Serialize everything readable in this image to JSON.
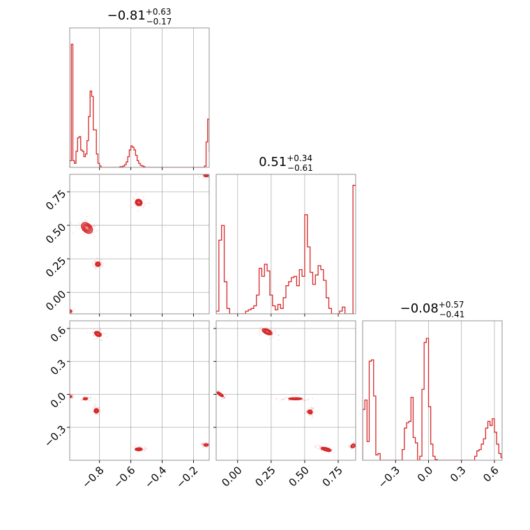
{
  "chart_data": {
    "type": "corner",
    "color": "#d62728",
    "parameters": [
      {
        "title": {
          "median": "−0.81",
          "plus": "+0.63",
          "minus": "−0.17"
        },
        "range": [
          -0.99,
          -0.1
        ],
        "ticks": [
          {
            "v": -0.8,
            "label": "−0.8"
          },
          {
            "v": -0.6,
            "label": "−0.6"
          },
          {
            "v": -0.4,
            "label": "−0.4"
          },
          {
            "v": -0.2,
            "label": "−0.2"
          }
        ],
        "histogram": [
          [
            -0.99,
            0.05
          ],
          [
            -0.98,
            0.92
          ],
          [
            -0.97,
            0.05
          ],
          [
            -0.96,
            0.03
          ],
          [
            -0.95,
            0.12
          ],
          [
            -0.94,
            0.22
          ],
          [
            -0.93,
            0.23
          ],
          [
            -0.92,
            0.13
          ],
          [
            -0.91,
            0.12
          ],
          [
            -0.9,
            0.08
          ],
          [
            -0.89,
            0.1
          ],
          [
            -0.88,
            0.2
          ],
          [
            -0.87,
            0.38
          ],
          [
            -0.86,
            0.57
          ],
          [
            -0.85,
            0.53
          ],
          [
            -0.84,
            0.28
          ],
          [
            -0.83,
            0.28
          ],
          [
            -0.82,
            0.1
          ],
          [
            -0.81,
            0.03
          ],
          [
            -0.8,
            0.01
          ],
          [
            -0.79,
            0.0
          ],
          [
            -0.78,
            0.0
          ],
          [
            -0.77,
            0.0
          ],
          [
            -0.76,
            0.0
          ],
          [
            -0.75,
            0.0
          ],
          [
            -0.74,
            0.0
          ],
          [
            -0.73,
            0.0
          ],
          [
            -0.72,
            0.0
          ],
          [
            -0.71,
            0.0
          ],
          [
            -0.7,
            0.0
          ],
          [
            -0.69,
            0.0
          ],
          [
            -0.68,
            0.0
          ],
          [
            -0.67,
            0.005
          ],
          [
            -0.66,
            0.005
          ],
          [
            -0.65,
            0.01
          ],
          [
            -0.64,
            0.02
          ],
          [
            -0.63,
            0.04
          ],
          [
            -0.62,
            0.08
          ],
          [
            -0.61,
            0.13
          ],
          [
            -0.6,
            0.16
          ],
          [
            -0.59,
            0.15
          ],
          [
            -0.58,
            0.13
          ],
          [
            -0.57,
            0.09
          ],
          [
            -0.56,
            0.05
          ],
          [
            -0.55,
            0.03
          ],
          [
            -0.54,
            0.015
          ],
          [
            -0.53,
            0.01
          ],
          [
            -0.52,
            0.005
          ],
          [
            -0.51,
            0.0
          ],
          [
            -0.5,
            0.0
          ],
          [
            -0.49,
            0.0
          ],
          [
            -0.48,
            0.0
          ],
          [
            -0.47,
            0.0
          ],
          [
            -0.46,
            0.0
          ],
          [
            -0.45,
            0.0
          ],
          [
            -0.44,
            0.0
          ],
          [
            -0.43,
            0.0
          ],
          [
            -0.42,
            0.0
          ],
          [
            -0.41,
            0.0
          ],
          [
            -0.4,
            0.0
          ],
          [
            -0.39,
            0.0
          ],
          [
            -0.38,
            0.0
          ],
          [
            -0.37,
            0.0
          ],
          [
            -0.36,
            0.0
          ],
          [
            -0.35,
            0.0
          ],
          [
            -0.34,
            0.0
          ],
          [
            -0.33,
            0.0
          ],
          [
            -0.32,
            0.0
          ],
          [
            -0.31,
            0.0
          ],
          [
            -0.3,
            0.0
          ],
          [
            -0.29,
            0.0
          ],
          [
            -0.28,
            0.0
          ],
          [
            -0.27,
            0.0
          ],
          [
            -0.26,
            0.0
          ],
          [
            -0.25,
            0.0
          ],
          [
            -0.24,
            0.0
          ],
          [
            -0.23,
            0.0
          ],
          [
            -0.22,
            0.0
          ],
          [
            -0.21,
            0.0
          ],
          [
            -0.2,
            0.0
          ],
          [
            -0.19,
            0.0
          ],
          [
            -0.18,
            0.0
          ],
          [
            -0.17,
            0.0
          ],
          [
            -0.16,
            0.0
          ],
          [
            -0.15,
            0.0
          ],
          [
            -0.14,
            0.0
          ],
          [
            -0.13,
            0.01
          ],
          [
            -0.12,
            0.19
          ],
          [
            -0.11,
            0.36
          ],
          [
            -0.1,
            0.12
          ]
        ]
      },
      {
        "title": {
          "median": "0.51",
          "plus": "+0.34",
          "minus": "−0.61"
        },
        "range": [
          -0.16,
          0.88
        ],
        "ticks": [
          {
            "v": 0.0,
            "label": "0.00"
          },
          {
            "v": 0.25,
            "label": "0.25"
          },
          {
            "v": 0.5,
            "label": "0.50"
          },
          {
            "v": 0.75,
            "label": "0.75"
          }
        ],
        "histogram": [
          [
            -0.16,
            0.02
          ],
          [
            -0.14,
            0.55
          ],
          [
            -0.12,
            0.66
          ],
          [
            -0.1,
            0.24
          ],
          [
            -0.08,
            0.04
          ],
          [
            -0.06,
            0.0
          ],
          [
            -0.04,
            0.0
          ],
          [
            -0.02,
            0.0
          ],
          [
            0.0,
            0.0
          ],
          [
            0.02,
            0.0
          ],
          [
            0.04,
            0.0
          ],
          [
            0.06,
            0.02
          ],
          [
            0.08,
            0.03
          ],
          [
            0.1,
            0.04
          ],
          [
            0.12,
            0.06
          ],
          [
            0.14,
            0.14
          ],
          [
            0.16,
            0.34
          ],
          [
            0.18,
            0.28
          ],
          [
            0.2,
            0.37
          ],
          [
            0.22,
            0.32
          ],
          [
            0.24,
            0.14
          ],
          [
            0.26,
            0.06
          ],
          [
            0.28,
            0.03
          ],
          [
            0.3,
            0.07
          ],
          [
            0.32,
            0.04
          ],
          [
            0.34,
            0.12
          ],
          [
            0.36,
            0.21
          ],
          [
            0.38,
            0.24
          ],
          [
            0.4,
            0.27
          ],
          [
            0.42,
            0.28
          ],
          [
            0.44,
            0.21
          ],
          [
            0.46,
            0.33
          ],
          [
            0.48,
            0.28
          ],
          [
            0.5,
            0.74
          ],
          [
            0.52,
            0.5
          ],
          [
            0.54,
            0.31
          ],
          [
            0.56,
            0.22
          ],
          [
            0.58,
            0.29
          ],
          [
            0.6,
            0.36
          ],
          [
            0.62,
            0.33
          ],
          [
            0.64,
            0.25
          ],
          [
            0.66,
            0.12
          ],
          [
            0.68,
            0.04
          ],
          [
            0.7,
            0.0
          ],
          [
            0.72,
            0.0
          ],
          [
            0.74,
            0.0
          ],
          [
            0.76,
            0.02
          ],
          [
            0.78,
            0.05
          ],
          [
            0.8,
            0.0
          ],
          [
            0.82,
            0.0
          ],
          [
            0.84,
            0.0
          ],
          [
            0.86,
            0.96
          ]
        ]
      },
      {
        "title": {
          "median": "−0.08",
          "plus": "+0.57",
          "minus": "−0.41"
        },
        "range": [
          -0.6,
          0.67
        ],
        "ticks": [
          {
            "v": -0.3,
            "label": "−0.3"
          },
          {
            "v": 0.0,
            "label": "0.0"
          },
          {
            "v": 0.3,
            "label": "0.3"
          },
          {
            "v": 0.6,
            "label": "0.6"
          }
        ],
        "histogram": [
          [
            -0.6,
            0.38
          ],
          [
            -0.58,
            0.45
          ],
          [
            -0.56,
            0.14
          ],
          [
            -0.54,
            0.74
          ],
          [
            -0.52,
            0.75
          ],
          [
            -0.5,
            0.48
          ],
          [
            -0.48,
            0.04
          ],
          [
            -0.46,
            0.05
          ],
          [
            -0.44,
            0.0
          ],
          [
            -0.42,
            0.0
          ],
          [
            -0.4,
            0.0
          ],
          [
            -0.38,
            0.0
          ],
          [
            -0.36,
            0.0
          ],
          [
            -0.34,
            0.0
          ],
          [
            -0.32,
            0.0
          ],
          [
            -0.3,
            0.0
          ],
          [
            -0.28,
            0.0
          ],
          [
            -0.26,
            0.0
          ],
          [
            -0.24,
            0.08
          ],
          [
            -0.22,
            0.24
          ],
          [
            -0.2,
            0.28
          ],
          [
            -0.18,
            0.29
          ],
          [
            -0.16,
            0.47
          ],
          [
            -0.14,
            0.17
          ],
          [
            -0.12,
            0.13
          ],
          [
            -0.1,
            0.0
          ],
          [
            -0.08,
            0.03
          ],
          [
            -0.06,
            0.53
          ],
          [
            -0.04,
            0.88
          ],
          [
            -0.02,
            0.91
          ],
          [
            0.0,
            0.4
          ],
          [
            0.02,
            0.12
          ],
          [
            0.04,
            0.03
          ],
          [
            0.06,
            0.005
          ],
          [
            0.08,
            0.0
          ],
          [
            0.1,
            0.0
          ],
          [
            0.12,
            0.0
          ],
          [
            0.14,
            0.0
          ],
          [
            0.16,
            0.0
          ],
          [
            0.18,
            0.0
          ],
          [
            0.2,
            0.0
          ],
          [
            0.22,
            0.0
          ],
          [
            0.24,
            0.0
          ],
          [
            0.26,
            0.0
          ],
          [
            0.28,
            0.0
          ],
          [
            0.3,
            0.0
          ],
          [
            0.32,
            0.0
          ],
          [
            0.34,
            0.0
          ],
          [
            0.36,
            0.0
          ],
          [
            0.38,
            0.0
          ],
          [
            0.4,
            0.0
          ],
          [
            0.42,
            0.03
          ],
          [
            0.44,
            0.07
          ],
          [
            0.46,
            0.08
          ],
          [
            0.48,
            0.12
          ],
          [
            0.5,
            0.16
          ],
          [
            0.52,
            0.24
          ],
          [
            0.54,
            0.29
          ],
          [
            0.56,
            0.26
          ],
          [
            0.58,
            0.31
          ],
          [
            0.6,
            0.21
          ],
          [
            0.62,
            0.12
          ],
          [
            0.64,
            0.05
          ],
          [
            0.66,
            0.02
          ]
        ]
      }
    ],
    "pairs": [
      {
        "x": 0,
        "y": 1,
        "modes": [
          {
            "cx": -0.88,
            "cy": 0.48,
            "sx": 0.05,
            "sy": 0.13,
            "angle": 47,
            "levels": 3
          },
          {
            "cx": -0.81,
            "cy": 0.21,
            "sx": 0.025,
            "sy": 0.05,
            "angle": 80,
            "levels": 3
          },
          {
            "cx": -0.55,
            "cy": 0.67,
            "sx": 0.035,
            "sy": 0.07,
            "angle": 60,
            "levels": 3
          },
          {
            "cx": -0.12,
            "cy": 0.87,
            "sx": 0.025,
            "sy": 0.02,
            "angle": 0,
            "levels": 2
          },
          {
            "cx": -0.99,
            "cy": -0.14,
            "sx": 0.015,
            "sy": 0.04,
            "angle": 90,
            "levels": 2
          }
        ]
      },
      {
        "x": 0,
        "y": 2,
        "modes": [
          {
            "cx": -0.81,
            "cy": 0.55,
            "sx": 0.025,
            "sy": 0.09,
            "angle": 62,
            "levels": 3
          },
          {
            "cx": -0.99,
            "cy": -0.02,
            "sx": 0.012,
            "sy": 0.05,
            "angle": 90,
            "levels": 2
          },
          {
            "cx": -0.89,
            "cy": -0.04,
            "sx": 0.025,
            "sy": 0.025,
            "angle": 5,
            "levels": 2
          },
          {
            "cx": -0.82,
            "cy": -0.15,
            "sx": 0.025,
            "sy": 0.055,
            "angle": 70,
            "levels": 3
          },
          {
            "cx": -0.55,
            "cy": -0.5,
            "sx": 0.04,
            "sy": 0.035,
            "angle": 0,
            "levels": 3
          },
          {
            "cx": -0.12,
            "cy": -0.46,
            "sx": 0.025,
            "sy": 0.03,
            "angle": 0,
            "levels": 2
          }
        ]
      },
      {
        "x": 1,
        "y": 2,
        "modes": [
          {
            "cx": -0.13,
            "cy": 0.0,
            "sx": 0.015,
            "sy": 0.09,
            "angle": 55,
            "levels": 3
          },
          {
            "cx": 0.22,
            "cy": 0.57,
            "sx": 0.07,
            "sy": 0.06,
            "angle": -25,
            "levels": 3
          },
          {
            "cx": 0.43,
            "cy": -0.04,
            "sx": 0.09,
            "sy": 0.025,
            "angle": 0,
            "levels": 3
          },
          {
            "cx": 0.54,
            "cy": -0.16,
            "sx": 0.025,
            "sy": 0.06,
            "angle": 75,
            "levels": 3
          },
          {
            "cx": 0.66,
            "cy": -0.5,
            "sx": 0.07,
            "sy": 0.04,
            "angle": -15,
            "levels": 3
          },
          {
            "cx": 0.86,
            "cy": -0.47,
            "sx": 0.03,
            "sy": 0.04,
            "angle": 30,
            "levels": 2
          }
        ]
      }
    ]
  }
}
